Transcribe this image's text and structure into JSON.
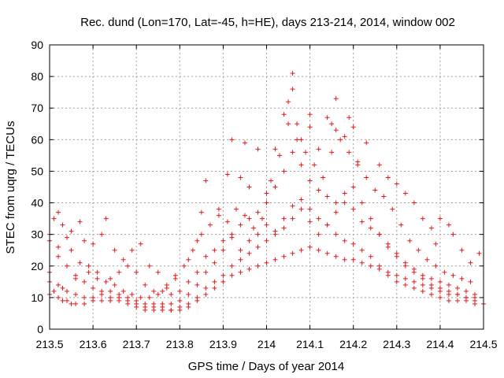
{
  "chart_data": {
    "type": "scatter",
    "title": "Rec. dund (Lon=170, Lat=-45, h=HE), days 213-214, 2014, window 002",
    "xlabel": "GPS time / Days of year 2014",
    "ylabel": "STEC from uqrg / TECUs",
    "xlim": [
      213.5,
      214.5
    ],
    "ylim": [
      0,
      90
    ],
    "xticks": [
      213.5,
      213.6,
      213.7,
      213.8,
      213.9,
      214,
      214.1,
      214.2,
      214.3,
      214.4,
      214.5
    ],
    "xtick_labels": [
      "213.5",
      "213.6",
      "213.7",
      "213.8",
      "213.9",
      "214",
      "214.1",
      "214.2",
      "214.3",
      "214.4",
      "214.5"
    ],
    "yticks": [
      0,
      10,
      20,
      30,
      40,
      50,
      60,
      70,
      80,
      90
    ],
    "ytick_labels": [
      "0",
      "10",
      "20",
      "30",
      "40",
      "50",
      "60",
      "70",
      "80",
      "90"
    ],
    "grid": true,
    "marker": "+",
    "color": "#e41a1c",
    "series": [
      {
        "name": "STEC",
        "points": [
          [
            213.5,
            15
          ],
          [
            213.51,
            12
          ],
          [
            213.52,
            10
          ],
          [
            213.53,
            9
          ],
          [
            213.54,
            9
          ],
          [
            213.55,
            8
          ],
          [
            213.56,
            8
          ],
          [
            213.58,
            8
          ],
          [
            213.6,
            9
          ],
          [
            213.62,
            9
          ],
          [
            213.64,
            9
          ],
          [
            213.66,
            9
          ],
          [
            213.68,
            8
          ],
          [
            213.7,
            7
          ],
          [
            213.72,
            6
          ],
          [
            213.74,
            6
          ],
          [
            213.76,
            6
          ],
          [
            213.78,
            6
          ],
          [
            213.8,
            6
          ],
          [
            213.82,
            7
          ],
          [
            213.84,
            9
          ],
          [
            213.86,
            11
          ],
          [
            213.88,
            13
          ],
          [
            213.9,
            15
          ],
          [
            213.92,
            17
          ],
          [
            213.94,
            18
          ],
          [
            213.96,
            19
          ],
          [
            213.98,
            20
          ],
          [
            214.0,
            21
          ],
          [
            214.02,
            22
          ],
          [
            214.04,
            23
          ],
          [
            214.06,
            24
          ],
          [
            214.08,
            25
          ],
          [
            214.1,
            26
          ],
          [
            214.12,
            25
          ],
          [
            214.14,
            24
          ],
          [
            214.16,
            23
          ],
          [
            214.18,
            22
          ],
          [
            214.2,
            22
          ],
          [
            214.22,
            21
          ],
          [
            214.24,
            20
          ],
          [
            214.26,
            19
          ],
          [
            214.28,
            17
          ],
          [
            214.3,
            15
          ],
          [
            214.32,
            14
          ],
          [
            214.34,
            13
          ],
          [
            214.36,
            12
          ],
          [
            214.38,
            11
          ],
          [
            214.4,
            10
          ],
          [
            214.42,
            9
          ],
          [
            214.44,
            9
          ],
          [
            214.46,
            9
          ],
          [
            214.48,
            8
          ],
          [
            214.5,
            8
          ],
          [
            213.5,
            18
          ],
          [
            213.52,
            14
          ],
          [
            213.54,
            12
          ],
          [
            213.56,
            11
          ],
          [
            213.58,
            10
          ],
          [
            213.6,
            10
          ],
          [
            213.62,
            11
          ],
          [
            213.64,
            10
          ],
          [
            213.66,
            10
          ],
          [
            213.68,
            9
          ],
          [
            213.7,
            8
          ],
          [
            213.72,
            7
          ],
          [
            213.74,
            7
          ],
          [
            213.76,
            7
          ],
          [
            213.78,
            6
          ],
          [
            213.8,
            7
          ],
          [
            213.82,
            8
          ],
          [
            213.84,
            10
          ],
          [
            213.86,
            13
          ],
          [
            213.88,
            15
          ],
          [
            213.9,
            17
          ],
          [
            213.92,
            20
          ],
          [
            213.94,
            22
          ],
          [
            213.96,
            24
          ],
          [
            213.98,
            26
          ],
          [
            214.0,
            28
          ],
          [
            214.02,
            31
          ],
          [
            214.04,
            35
          ],
          [
            214.06,
            39
          ],
          [
            214.08,
            41
          ],
          [
            214.1,
            38
          ],
          [
            214.12,
            35
          ],
          [
            214.14,
            33
          ],
          [
            214.16,
            30
          ],
          [
            214.18,
            28
          ],
          [
            214.2,
            27
          ],
          [
            214.22,
            25
          ],
          [
            214.24,
            23
          ],
          [
            214.26,
            20
          ],
          [
            214.28,
            18
          ],
          [
            214.3,
            17
          ],
          [
            214.32,
            16
          ],
          [
            214.34,
            15
          ],
          [
            214.36,
            14
          ],
          [
            214.38,
            13
          ],
          [
            214.4,
            12
          ],
          [
            214.42,
            11
          ],
          [
            214.44,
            11
          ],
          [
            214.46,
            10
          ],
          [
            214.48,
            10
          ],
          [
            213.5,
            28
          ],
          [
            213.52,
            23
          ],
          [
            213.54,
            20
          ],
          [
            213.56,
            17
          ],
          [
            213.58,
            15
          ],
          [
            213.6,
            13
          ],
          [
            213.62,
            12
          ],
          [
            213.64,
            12
          ],
          [
            213.66,
            11
          ],
          [
            213.68,
            10
          ],
          [
            213.7,
            9
          ],
          [
            213.72,
            8
          ],
          [
            213.74,
            8
          ],
          [
            213.76,
            8
          ],
          [
            213.78,
            8
          ],
          [
            213.8,
            9
          ],
          [
            213.82,
            11
          ],
          [
            213.84,
            14
          ],
          [
            213.86,
            18
          ],
          [
            213.88,
            21
          ],
          [
            213.9,
            25
          ],
          [
            213.92,
            29
          ],
          [
            213.94,
            33
          ],
          [
            213.96,
            35
          ],
          [
            213.98,
            37
          ],
          [
            214.0,
            40
          ],
          [
            214.02,
            45
          ],
          [
            214.04,
            50
          ],
          [
            214.06,
            56
          ],
          [
            214.08,
            52
          ],
          [
            214.1,
            47
          ],
          [
            214.12,
            44
          ],
          [
            214.14,
            42
          ],
          [
            214.16,
            40
          ],
          [
            214.18,
            43
          ],
          [
            214.2,
            45
          ],
          [
            214.22,
            40
          ],
          [
            214.24,
            35
          ],
          [
            214.26,
            30
          ],
          [
            214.28,
            26
          ],
          [
            214.3,
            23
          ],
          [
            214.32,
            21
          ],
          [
            214.34,
            19
          ],
          [
            214.36,
            17
          ],
          [
            214.38,
            16
          ],
          [
            214.4,
            15
          ],
          [
            214.42,
            14
          ],
          [
            214.44,
            13
          ],
          [
            214.46,
            12
          ],
          [
            214.48,
            11
          ],
          [
            213.5,
            30
          ],
          [
            213.52,
            26
          ],
          [
            213.54,
            29
          ],
          [
            213.55,
            25
          ],
          [
            213.57,
            21
          ],
          [
            213.59,
            18
          ],
          [
            213.61,
            16
          ],
          [
            213.63,
            15
          ],
          [
            213.65,
            14
          ],
          [
            213.67,
            12
          ],
          [
            213.69,
            11
          ],
          [
            213.71,
            10
          ],
          [
            213.73,
            10
          ],
          [
            213.75,
            11
          ],
          [
            213.77,
            13
          ],
          [
            213.79,
            16
          ],
          [
            213.81,
            20
          ],
          [
            213.83,
            25
          ],
          [
            213.85,
            30
          ],
          [
            213.87,
            33
          ],
          [
            213.89,
            36
          ],
          [
            213.91,
            34
          ],
          [
            213.93,
            38
          ],
          [
            213.95,
            36
          ],
          [
            213.97,
            32
          ],
          [
            213.99,
            35
          ],
          [
            214.01,
            47
          ],
          [
            214.03,
            55
          ],
          [
            214.05,
            65
          ],
          [
            214.07,
            60
          ],
          [
            214.09,
            56
          ],
          [
            214.11,
            52
          ],
          [
            214.13,
            48
          ],
          [
            214.15,
            56
          ],
          [
            214.17,
            60
          ],
          [
            214.19,
            56
          ],
          [
            214.21,
            52
          ],
          [
            214.23,
            48
          ],
          [
            214.25,
            44
          ],
          [
            214.27,
            42
          ],
          [
            214.29,
            38
          ],
          [
            214.31,
            33
          ],
          [
            214.33,
            28
          ],
          [
            214.35,
            25
          ],
          [
            214.37,
            22
          ],
          [
            214.39,
            20
          ],
          [
            214.41,
            18
          ],
          [
            214.43,
            17
          ],
          [
            214.45,
            16
          ],
          [
            214.47,
            15
          ],
          [
            213.51,
            35
          ],
          [
            213.52,
            37
          ],
          [
            213.53,
            33
          ],
          [
            213.55,
            31
          ],
          [
            213.57,
            34
          ],
          [
            213.58,
            28
          ],
          [
            213.6,
            27
          ],
          [
            213.62,
            30
          ],
          [
            213.63,
            35
          ],
          [
            213.65,
            25
          ],
          [
            213.67,
            22
          ],
          [
            213.69,
            25
          ],
          [
            213.71,
            27
          ],
          [
            213.73,
            20
          ],
          [
            213.75,
            18
          ],
          [
            213.77,
            14
          ],
          [
            213.79,
            17
          ],
          [
            213.82,
            22
          ],
          [
            213.84,
            28
          ],
          [
            213.85,
            37
          ],
          [
            213.86,
            47
          ],
          [
            213.89,
            38
          ],
          [
            213.91,
            49
          ],
          [
            213.92,
            60
          ],
          [
            213.94,
            48
          ],
          [
            213.95,
            59
          ],
          [
            213.96,
            45
          ],
          [
            213.98,
            57
          ],
          [
            214.0,
            43
          ],
          [
            214.02,
            57
          ],
          [
            214.04,
            68
          ],
          [
            214.05,
            72
          ],
          [
            214.06,
            81
          ],
          [
            214.06,
            76
          ],
          [
            214.07,
            65
          ],
          [
            214.08,
            60
          ],
          [
            214.1,
            68
          ],
          [
            214.1,
            64
          ],
          [
            214.12,
            57
          ],
          [
            214.14,
            67
          ],
          [
            214.15,
            65
          ],
          [
            214.16,
            63
          ],
          [
            214.16,
            73
          ],
          [
            214.18,
            61
          ],
          [
            214.19,
            67
          ],
          [
            214.2,
            64
          ],
          [
            214.21,
            53
          ],
          [
            214.23,
            59
          ],
          [
            214.26,
            52
          ],
          [
            214.28,
            48
          ],
          [
            214.3,
            46
          ],
          [
            214.32,
            43
          ],
          [
            214.34,
            40
          ],
          [
            214.36,
            35
          ],
          [
            214.38,
            32
          ],
          [
            214.39,
            27
          ],
          [
            214.4,
            35
          ],
          [
            214.42,
            33
          ],
          [
            214.43,
            30
          ],
          [
            214.45,
            25
          ],
          [
            214.47,
            21
          ],
          [
            214.49,
            24
          ],
          [
            213.5,
            11
          ],
          [
            213.53,
            13
          ],
          [
            213.56,
            16
          ],
          [
            213.59,
            20
          ],
          [
            213.61,
            18
          ],
          [
            213.64,
            16
          ],
          [
            213.66,
            18
          ],
          [
            213.68,
            20
          ],
          [
            213.7,
            18
          ],
          [
            213.72,
            14
          ],
          [
            213.74,
            12
          ],
          [
            213.76,
            12
          ],
          [
            213.78,
            11
          ],
          [
            213.8,
            12
          ],
          [
            213.82,
            15
          ],
          [
            213.84,
            18
          ],
          [
            213.86,
            23
          ],
          [
            213.88,
            25
          ],
          [
            213.9,
            28
          ],
          [
            213.92,
            30
          ],
          [
            213.94,
            25
          ],
          [
            213.96,
            28
          ],
          [
            213.98,
            30
          ],
          [
            214.0,
            33
          ],
          [
            214.02,
            30
          ],
          [
            214.04,
            32
          ],
          [
            214.06,
            35
          ],
          [
            214.08,
            38
          ],
          [
            214.1,
            34
          ],
          [
            214.12,
            30
          ],
          [
            214.14,
            33
          ],
          [
            214.16,
            37
          ],
          [
            214.18,
            40
          ],
          [
            214.2,
            38
          ],
          [
            214.22,
            34
          ],
          [
            214.24,
            32
          ],
          [
            214.26,
            30
          ],
          [
            214.28,
            27
          ],
          [
            214.3,
            24
          ],
          [
            214.32,
            20
          ],
          [
            214.34,
            18
          ],
          [
            214.36,
            16
          ],
          [
            214.38,
            14
          ],
          [
            214.4,
            13
          ],
          [
            214.42,
            12
          ],
          [
            214.44,
            11
          ],
          [
            214.46,
            10
          ],
          [
            214.48,
            9
          ]
        ]
      }
    ]
  }
}
